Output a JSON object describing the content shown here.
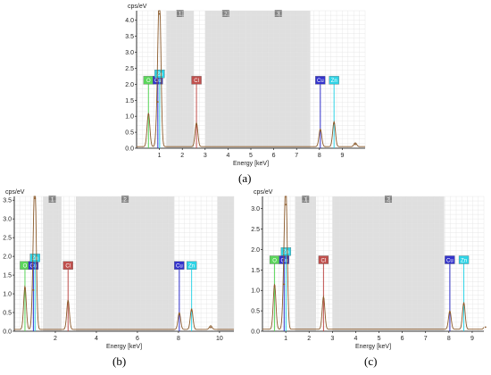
{
  "captions": [
    "(a)",
    "(b)",
    "(c)"
  ],
  "colors": {
    "band": "#d9d9d9",
    "grid": "#e2e2e2",
    "spectrum": "#8b5a2b",
    "marker_O": "#5cd65c",
    "marker_Zn": "#2ed3e6",
    "marker_Cu": "#3333cc",
    "marker_Cl": "#c0504d",
    "band_label_bg": "#808080"
  },
  "chart_data": [
    {
      "type": "line",
      "panel": "(a)",
      "ylabel": "cps/eV",
      "xlabel": "Energy [keV]",
      "xlim": [
        0,
        10
      ],
      "ylim": [
        0,
        4.3
      ],
      "xticks": [
        1,
        2,
        3,
        4,
        5,
        6,
        7,
        8,
        9
      ],
      "yticks": [
        0.0,
        0.5,
        1.0,
        1.5,
        2.0,
        2.5,
        3.0,
        3.5,
        4.0
      ],
      "ytick_labels": [
        "0.0",
        "0.5",
        "1.0",
        "1.5",
        "2.0",
        "2.5",
        "3.0",
        "3.5",
        "4.0"
      ],
      "grid": true,
      "bands": [
        {
          "label": "1",
          "from": 1.3,
          "to": 2.5
        },
        {
          "label": "2",
          "from": 3.0,
          "to": 4.8
        },
        {
          "label": "3",
          "from": 4.8,
          "to": 7.6
        }
      ],
      "peaks": [
        {
          "x": 0.52,
          "y": 1.05
        },
        {
          "x": 0.93,
          "y": 1.45
        },
        {
          "x": 1.01,
          "y": 4.2
        },
        {
          "x": 2.62,
          "y": 0.75
        },
        {
          "x": 8.04,
          "y": 0.55
        },
        {
          "x": 8.64,
          "y": 0.78
        },
        {
          "x": 9.57,
          "y": 0.12
        }
      ],
      "markers": [
        {
          "label": "O",
          "x": 0.52,
          "y": 2.0
        },
        {
          "label": "Cu",
          "x": 0.93,
          "y": 2.0
        },
        {
          "label": "Zn",
          "x": 1.01,
          "y": 2.2
        },
        {
          "label": "Cl",
          "x": 2.62,
          "y": 2.0
        },
        {
          "label": "Cu",
          "x": 8.04,
          "y": 2.0
        },
        {
          "label": "Zn",
          "x": 8.64,
          "y": 2.0
        }
      ]
    },
    {
      "type": "line",
      "panel": "(b)",
      "ylabel": "cps/eV",
      "xlabel": "Energy [keV]",
      "xlim": [
        0,
        10.7
      ],
      "ylim": [
        0,
        3.6
      ],
      "xticks": [
        2,
        4,
        6,
        8,
        10
      ],
      "yticks": [
        0.0,
        0.5,
        1.0,
        1.5,
        2.0,
        2.5,
        3.0,
        3.5
      ],
      "ytick_labels": [
        "0.0",
        "0.5",
        "1.0",
        "1.5",
        "2.0",
        "2.5",
        "3.0",
        "3.5"
      ],
      "grid": true,
      "bands": [
        {
          "label": "1",
          "from": 1.4,
          "to": 2.3
        },
        {
          "label": "2",
          "from": 3.0,
          "to": 7.8
        },
        {
          "label": "",
          "from": 9.9,
          "to": 10.7
        }
      ],
      "peaks": [
        {
          "x": 0.52,
          "y": 1.15
        },
        {
          "x": 0.93,
          "y": 1.1
        },
        {
          "x": 1.01,
          "y": 3.55
        },
        {
          "x": 2.62,
          "y": 0.78
        },
        {
          "x": 8.04,
          "y": 0.45
        },
        {
          "x": 8.64,
          "y": 0.55
        },
        {
          "x": 9.57,
          "y": 0.1
        }
      ],
      "markers": [
        {
          "label": "O",
          "x": 0.52,
          "y": 1.65
        },
        {
          "label": "Cu",
          "x": 0.93,
          "y": 1.65
        },
        {
          "label": "Zn",
          "x": 1.01,
          "y": 1.85
        },
        {
          "label": "Cl",
          "x": 2.62,
          "y": 1.65
        },
        {
          "label": "Cu",
          "x": 8.04,
          "y": 1.65
        },
        {
          "label": "Zn",
          "x": 8.64,
          "y": 1.65
        }
      ]
    },
    {
      "type": "line",
      "panel": "(c)",
      "ylabel": "cps/eV",
      "xlabel": "Energy [keV]",
      "xlim": [
        0,
        9.5
      ],
      "ylim": [
        0,
        3.3
      ],
      "xticks": [
        1,
        2,
        3,
        4,
        5,
        6,
        7,
        8,
        9
      ],
      "yticks": [
        0.0,
        0.5,
        1.0,
        1.5,
        2.0,
        2.5,
        3.0
      ],
      "ytick_labels": [
        "0.0",
        "0.5",
        "1.0",
        "1.5",
        "2.0",
        "2.5",
        "3.0"
      ],
      "grid": true,
      "bands": [
        {
          "label": "1",
          "from": 1.4,
          "to": 2.3
        },
        {
          "label": "2",
          "from": 3.0,
          "to": 7.8
        }
      ],
      "peaks": [
        {
          "x": 0.52,
          "y": 1.1
        },
        {
          "x": 0.93,
          "y": 1.15
        },
        {
          "x": 1.01,
          "y": 3.1
        },
        {
          "x": 2.62,
          "y": 0.8
        },
        {
          "x": 8.04,
          "y": 0.45
        },
        {
          "x": 8.64,
          "y": 0.65
        },
        {
          "x": 9.57,
          "y": 0.1
        }
      ],
      "markers": [
        {
          "label": "O",
          "x": 0.52,
          "y": 1.65
        },
        {
          "label": "Cu",
          "x": 0.93,
          "y": 1.65
        },
        {
          "label": "Zn",
          "x": 1.01,
          "y": 1.85
        },
        {
          "label": "Cl",
          "x": 2.62,
          "y": 1.65
        },
        {
          "label": "Cu",
          "x": 8.04,
          "y": 1.65
        },
        {
          "label": "Zn",
          "x": 8.64,
          "y": 1.65
        }
      ]
    }
  ]
}
